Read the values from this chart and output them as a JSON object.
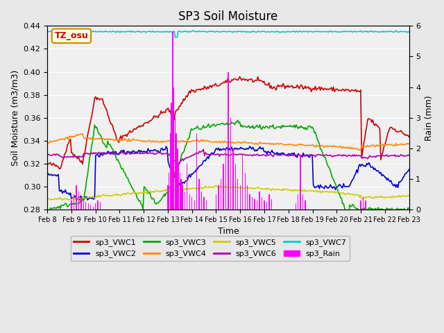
{
  "title": "SP3 Soil Moisture",
  "xlabel": "Time",
  "ylabel_left": "Soil Moisture (m3/m3)",
  "ylabel_right": "Rain (mm)",
  "ylim_left": [
    0.28,
    0.44
  ],
  "ylim_right": [
    0.0,
    6.0
  ],
  "tz_label": "TZ_osu",
  "colors": {
    "sp3_VWC1": "#cc0000",
    "sp3_VWC2": "#0000cc",
    "sp3_VWC3": "#00aa00",
    "sp3_VWC4": "#ff8800",
    "sp3_VWC5": "#cccc00",
    "sp3_VWC6": "#aa00aa",
    "sp3_VWC7": "#00cccc",
    "sp3_Rain": "#ff00ff"
  },
  "background_color": "#e8e8e8",
  "plot_bg_color": "#f0f0f0",
  "n_points": 360,
  "x_start": 8.0,
  "x_end": 23.0,
  "xtick_positions": [
    8,
    9,
    10,
    11,
    12,
    13,
    14,
    15,
    16,
    17,
    18,
    19,
    20,
    21,
    22,
    23
  ],
  "xtick_labels": [
    "Feb 8",
    "Feb 9",
    "Feb 10",
    "Feb 11",
    "Feb 12",
    "Feb 13",
    "Feb 14",
    "Feb 15",
    "Feb 16",
    "Feb 17",
    "Feb 18",
    "Feb 19",
    "Feb 20",
    "Feb 21",
    "Feb 22",
    "Feb 23"
  ],
  "rain_events": [
    [
      9.0,
      0.3
    ],
    [
      9.1,
      0.5
    ],
    [
      9.2,
      0.8
    ],
    [
      9.3,
      0.6
    ],
    [
      9.4,
      0.4
    ],
    [
      9.5,
      0.3
    ],
    [
      9.6,
      0.25
    ],
    [
      9.7,
      0.2
    ],
    [
      9.8,
      0.15
    ],
    [
      9.9,
      0.1
    ],
    [
      10.0,
      0.2
    ],
    [
      10.1,
      0.3
    ],
    [
      10.2,
      0.25
    ],
    [
      13.0,
      0.8
    ],
    [
      13.05,
      1.2
    ],
    [
      13.1,
      2.5
    ],
    [
      13.15,
      3.5
    ],
    [
      13.2,
      5.8
    ],
    [
      13.25,
      4.0
    ],
    [
      13.3,
      3.0
    ],
    [
      13.35,
      2.5
    ],
    [
      13.4,
      2.0
    ],
    [
      13.45,
      1.5
    ],
    [
      13.5,
      1.2
    ],
    [
      13.55,
      1.0
    ],
    [
      13.6,
      0.8
    ],
    [
      13.7,
      0.6
    ],
    [
      13.8,
      1.5
    ],
    [
      13.9,
      0.5
    ],
    [
      14.0,
      0.4
    ],
    [
      14.1,
      0.3
    ],
    [
      14.2,
      2.5
    ],
    [
      14.3,
      1.0
    ],
    [
      14.4,
      0.6
    ],
    [
      14.5,
      0.4
    ],
    [
      14.6,
      0.3
    ],
    [
      15.0,
      0.5
    ],
    [
      15.1,
      0.8
    ],
    [
      15.2,
      1.0
    ],
    [
      15.3,
      1.5
    ],
    [
      15.4,
      2.0
    ],
    [
      15.5,
      4.5
    ],
    [
      15.6,
      3.0
    ],
    [
      15.7,
      2.0
    ],
    [
      15.8,
      1.5
    ],
    [
      15.9,
      1.0
    ],
    [
      16.0,
      0.8
    ],
    [
      16.1,
      1.8
    ],
    [
      16.2,
      1.2
    ],
    [
      16.3,
      0.8
    ],
    [
      16.4,
      0.5
    ],
    [
      16.5,
      0.4
    ],
    [
      16.6,
      0.35
    ],
    [
      16.7,
      0.3
    ],
    [
      16.8,
      0.6
    ],
    [
      16.9,
      0.4
    ],
    [
      17.0,
      0.3
    ],
    [
      17.1,
      0.25
    ],
    [
      17.2,
      0.5
    ],
    [
      17.3,
      0.35
    ],
    [
      18.3,
      0.2
    ],
    [
      18.4,
      0.5
    ],
    [
      18.5,
      1.8
    ],
    [
      18.6,
      0.5
    ],
    [
      18.7,
      0.3
    ],
    [
      21.0,
      0.3
    ],
    [
      21.1,
      0.4
    ],
    [
      21.2,
      0.3
    ]
  ]
}
